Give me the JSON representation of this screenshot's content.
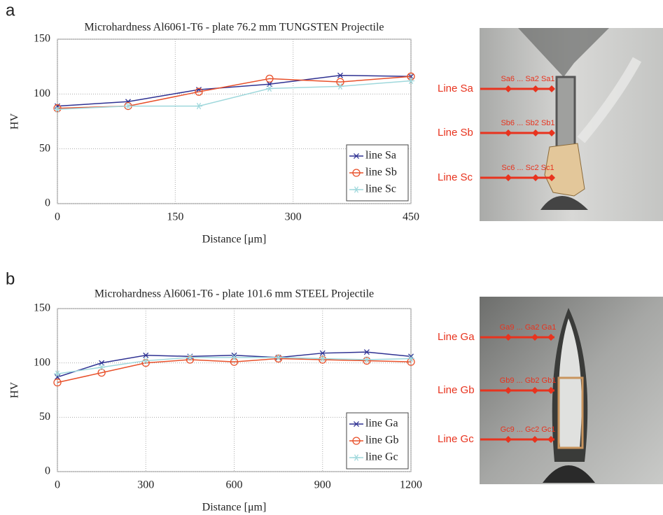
{
  "chart_data": [
    {
      "type": "line",
      "panel": "a",
      "title": "Microhardness Al6061-T6 - plate 76.2 mm TUNGSTEN Projectile",
      "xlabel": "Distance [μm]",
      "ylabel": "HV",
      "x": [
        0,
        90,
        180,
        270,
        360,
        450
      ],
      "series": [
        {
          "name": "line Sa",
          "color": "#2e3192",
          "marker": "x",
          "values": [
            89,
            93,
            104,
            109,
            117,
            116
          ]
        },
        {
          "name": "line Sb",
          "color": "#e8502a",
          "marker": "o",
          "values": [
            87,
            89,
            102,
            114,
            111,
            116
          ]
        },
        {
          "name": "line Sc",
          "color": "#9fd8dc",
          "marker": "*",
          "values": [
            86,
            89,
            89,
            105,
            107,
            112
          ]
        }
      ],
      "xlim": [
        0,
        450
      ],
      "xticks": [
        0,
        150,
        300,
        450
      ],
      "ylim": [
        0,
        150
      ],
      "yticks": [
        0,
        50,
        100,
        150
      ],
      "grid": true,
      "legend": "lower right"
    },
    {
      "type": "line",
      "panel": "b",
      "title": "Microhardness Al6061-T6 - plate 101.6 mm STEEL Projectile",
      "xlabel": "Distance [μm]",
      "ylabel": "HV",
      "x": [
        0,
        150,
        300,
        450,
        600,
        750,
        900,
        1050,
        1200
      ],
      "series": [
        {
          "name": "line Ga",
          "color": "#2e3192",
          "marker": "x",
          "values": [
            87,
            100,
            107,
            106,
            107,
            105,
            109,
            110,
            106
          ]
        },
        {
          "name": "line Gb",
          "color": "#e8502a",
          "marker": "o",
          "values": [
            82,
            91,
            100,
            103,
            101,
            104,
            103,
            102,
            101
          ]
        },
        {
          "name": "line Gc",
          "color": "#9fd8dc",
          "marker": "*",
          "values": [
            90,
            96,
            102,
            105,
            105,
            105,
            104,
            103,
            104
          ]
        }
      ],
      "xlim": [
        0,
        1200
      ],
      "xticks": [
        0,
        300,
        600,
        900,
        1200
      ],
      "ylim": [
        0,
        150
      ],
      "yticks": [
        0,
        50,
        100,
        150
      ],
      "grid": true,
      "legend": "lower right"
    }
  ],
  "photos": [
    {
      "lines": [
        {
          "name": "Line Sa",
          "points": "Sa6 ... Sa2 Sa1"
        },
        {
          "name": "Line Sb",
          "points": "Sb6 ... Sb2 Sb1"
        },
        {
          "name": "Line Sc",
          "points": "Sc6 ... Sc2 Sc1"
        }
      ]
    },
    {
      "lines": [
        {
          "name": "Line Ga",
          "points": "Ga9 ... Ga2 Ga1"
        },
        {
          "name": "Line Gb",
          "points": "Gb9 ... Gb2 Gb1"
        },
        {
          "name": "Line Gc",
          "points": "Gc9 ... Gc2 Gc1"
        }
      ]
    }
  ]
}
